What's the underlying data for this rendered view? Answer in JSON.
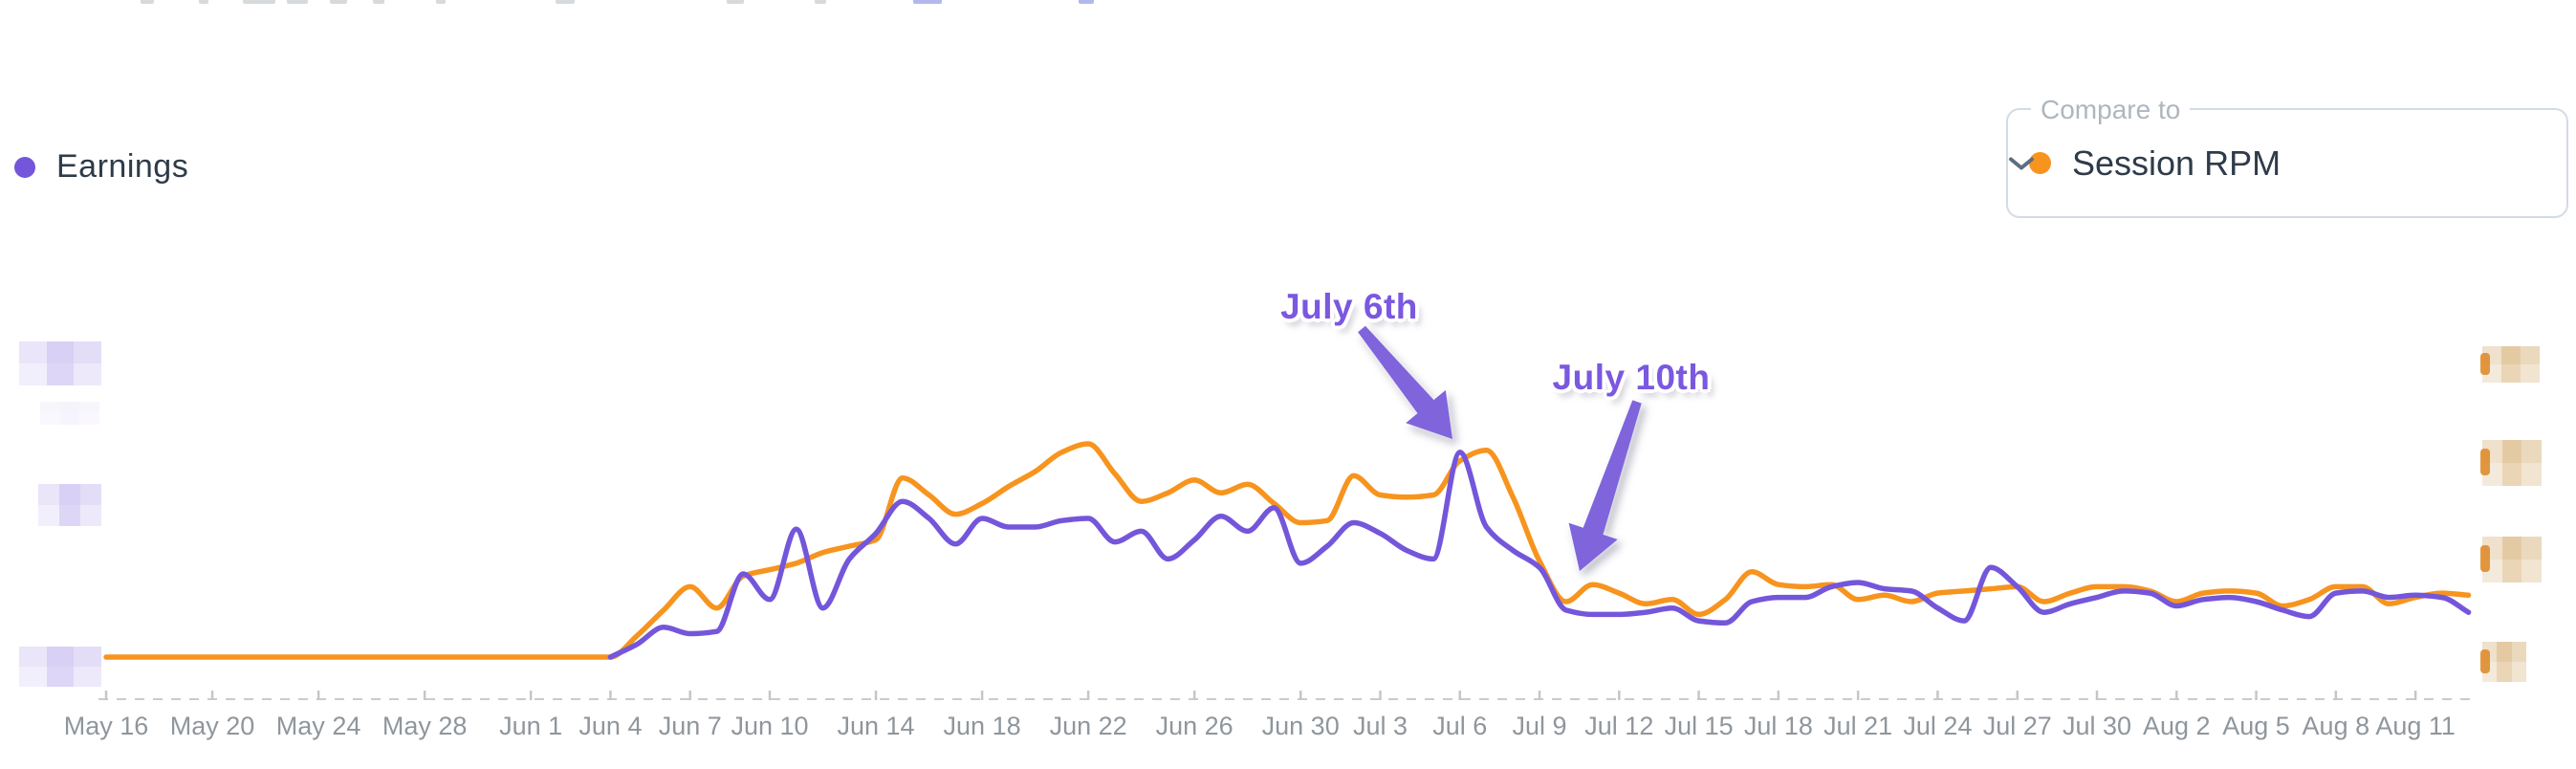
{
  "legend": {
    "label": "Earnings",
    "color": "#7456DB"
  },
  "compare_dropdown": {
    "label": "Compare to",
    "value": "Session RPM",
    "dot_color": "#F7941E",
    "chevron_icon": "chevron-down"
  },
  "chart_data": {
    "type": "line",
    "title": "",
    "xlabel": "",
    "ylabel": "",
    "values_scale": "relative 0-100 (numeric y-axis tick labels are pixelated/redacted in the screenshot)",
    "grid": "dashed horizontal x-axis line only, no y gridlines",
    "legend_position": "top-left (Earnings) and top-right compare selector (Session RPM)",
    "y_axis": {
      "left_tick_labels": "redacted (blurred purple blocks)",
      "right_tick_labels": "redacted (blurred orange blocks with $ remnants)"
    },
    "x": [
      "May 16",
      "May 17",
      "May 18",
      "May 19",
      "May 20",
      "May 21",
      "May 22",
      "May 23",
      "May 24",
      "May 25",
      "May 26",
      "May 27",
      "May 28",
      "May 29",
      "May 30",
      "May 31",
      "Jun 1",
      "Jun 2",
      "Jun 3",
      "Jun 4",
      "Jun 5",
      "Jun 6",
      "Jun 7",
      "Jun 8",
      "Jun 9",
      "Jun 10",
      "Jun 11",
      "Jun 12",
      "Jun 13",
      "Jun 14",
      "Jun 15",
      "Jun 16",
      "Jun 17",
      "Jun 18",
      "Jun 19",
      "Jun 20",
      "Jun 21",
      "Jun 22",
      "Jun 23",
      "Jun 24",
      "Jun 25",
      "Jun 26",
      "Jun 27",
      "Jun 28",
      "Jun 29",
      "Jun 30",
      "Jul 1",
      "Jul 2",
      "Jul 3",
      "Jul 4",
      "Jul 5",
      "Jul 6",
      "Jul 7",
      "Jul 8",
      "Jul 9",
      "Jul 10",
      "Jul 11",
      "Jul 12",
      "Jul 13",
      "Jul 14",
      "Jul 15",
      "Jul 16",
      "Jul 17",
      "Jul 18",
      "Jul 19",
      "Jul 20",
      "Jul 21",
      "Jul 22",
      "Jul 23",
      "Jul 24",
      "Jul 25",
      "Jul 26",
      "Jul 27",
      "Jul 28",
      "Jul 29",
      "Jul 30",
      "Jul 31",
      "Aug 1",
      "Aug 2",
      "Aug 3",
      "Aug 4",
      "Aug 5",
      "Aug 6",
      "Aug 7",
      "Aug 8",
      "Aug 9",
      "Aug 10",
      "Aug 11",
      "Aug 12",
      "Aug 13"
    ],
    "x_tick_labels": [
      {
        "index": 0,
        "label": "May 16"
      },
      {
        "index": 4,
        "label": "May 20"
      },
      {
        "index": 8,
        "label": "May 24"
      },
      {
        "index": 12,
        "label": "May 28"
      },
      {
        "index": 16,
        "label": "Jun 1"
      },
      {
        "index": 19,
        "label": "Jun 4"
      },
      {
        "index": 22,
        "label": "Jun 7"
      },
      {
        "index": 25,
        "label": "Jun 10"
      },
      {
        "index": 29,
        "label": "Jun 14"
      },
      {
        "index": 33,
        "label": "Jun 18"
      },
      {
        "index": 37,
        "label": "Jun 22"
      },
      {
        "index": 41,
        "label": "Jun 26"
      },
      {
        "index": 45,
        "label": "Jun 30"
      },
      {
        "index": 48,
        "label": "Jul 3"
      },
      {
        "index": 51,
        "label": "Jul 6"
      },
      {
        "index": 54,
        "label": "Jul 9"
      },
      {
        "index": 57,
        "label": "Jul 12"
      },
      {
        "index": 60,
        "label": "Jul 15"
      },
      {
        "index": 63,
        "label": "Jul 18"
      },
      {
        "index": 66,
        "label": "Jul 21"
      },
      {
        "index": 69,
        "label": "Jul 24"
      },
      {
        "index": 72,
        "label": "Jul 27"
      },
      {
        "index": 75,
        "label": "Jul 30"
      },
      {
        "index": 78,
        "label": "Aug 2"
      },
      {
        "index": 81,
        "label": "Aug 5"
      },
      {
        "index": 84,
        "label": "Aug 8"
      },
      {
        "index": 87,
        "label": "Aug 11"
      }
    ],
    "series": [
      {
        "name": "Earnings",
        "color": "#7456DB",
        "values": [
          0,
          0,
          0,
          0,
          0,
          0,
          0,
          0,
          0,
          0,
          0,
          0,
          0,
          0,
          0,
          0,
          0,
          0,
          0,
          0,
          6,
          14,
          11,
          12,
          39,
          27,
          60,
          23,
          46,
          58,
          73,
          65,
          53,
          65,
          61,
          61,
          64,
          65,
          54,
          59,
          46,
          55,
          66,
          59,
          70,
          44,
          52,
          63,
          58,
          50,
          46,
          96,
          61,
          50,
          42,
          22,
          20,
          20,
          21,
          23,
          17,
          16,
          26,
          28,
          28,
          33,
          35,
          32,
          31,
          23,
          17,
          42,
          33,
          21,
          25,
          28,
          31,
          30,
          24,
          27,
          28,
          26,
          22,
          19,
          30,
          31,
          28,
          29,
          28,
          21
        ]
      },
      {
        "name": "Session RPM",
        "color": "#F7941E",
        "values": [
          0,
          0,
          0,
          0,
          0,
          0,
          0,
          0,
          0,
          0,
          0,
          0,
          0,
          0,
          0,
          0,
          0,
          0,
          0,
          0,
          10,
          22,
          33,
          23,
          38,
          41,
          44,
          49,
          52,
          55,
          84,
          76,
          67,
          72,
          80,
          87,
          96,
          100,
          86,
          73,
          77,
          83,
          77,
          81,
          72,
          63,
          64,
          85,
          76,
          75,
          76,
          92,
          97,
          75,
          45,
          26,
          34,
          30,
          25,
          27,
          20,
          27,
          40,
          34,
          33,
          34,
          27,
          29,
          26,
          30,
          31,
          32,
          33,
          26,
          30,
          33,
          33,
          31,
          26,
          30,
          31,
          30,
          24,
          27,
          33,
          33,
          25,
          28,
          30,
          29
        ]
      }
    ],
    "annotations": [
      {
        "text": "July 6th",
        "points_to_date": "Jul 6",
        "note": "purple arrow pointing to the Jul 6 spike"
      },
      {
        "text": "July 10th",
        "points_to_date": "Jul 10",
        "note": "purple arrow pointing to the Jul 10 dip"
      }
    ]
  }
}
